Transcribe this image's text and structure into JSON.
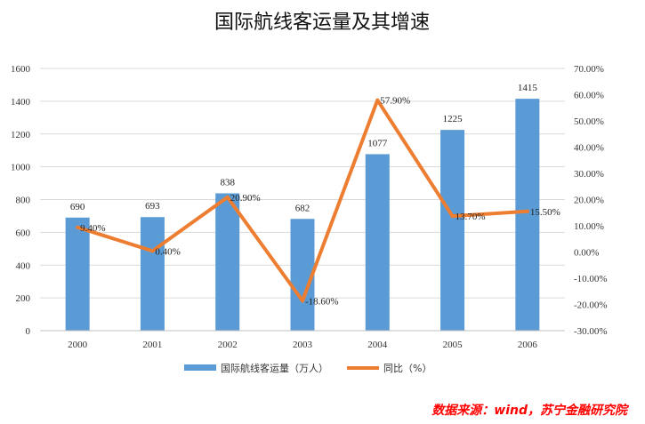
{
  "colors": {
    "bar": "#5b9bd5",
    "line": "#ed7d31",
    "grid": "#d9d9d9",
    "source": "#ff0000"
  },
  "source_text": "数据来源：wind，苏宁金融研究院",
  "chart_data": {
    "type": "bar",
    "title": "国际航线客运量及其增速",
    "categories": [
      "2000",
      "2001",
      "2002",
      "2003",
      "2004",
      "2005",
      "2006"
    ],
    "series": [
      {
        "name": "国际航线客运量（万人）",
        "type": "bar",
        "axis": "left",
        "values": [
          690,
          693,
          838,
          682,
          1077,
          1225,
          1415
        ],
        "labels": [
          "690",
          "693",
          "838",
          "682",
          "1077",
          "1225",
          "1415"
        ]
      },
      {
        "name": "同比（%）",
        "type": "line",
        "axis": "right",
        "values": [
          9.4,
          0.4,
          20.9,
          -18.6,
          57.9,
          13.7,
          15.5
        ],
        "labels": [
          "9.40%",
          "0.40%",
          "20.90%",
          "-18.60%",
          "57.90%",
          "13.70%",
          "15.50%"
        ]
      }
    ],
    "y_left": {
      "min": 0,
      "max": 1600,
      "ticks": [
        "0",
        "200",
        "400",
        "600",
        "800",
        "1000",
        "1200",
        "1400",
        "1600"
      ]
    },
    "y_right": {
      "min": -30,
      "max": 70,
      "ticks": [
        "-30.00%",
        "-20.00%",
        "-10.00%",
        "0.00%",
        "10.00%",
        "20.00%",
        "30.00%",
        "40.00%",
        "50.00%",
        "60.00%",
        "70.00%"
      ]
    },
    "grid": true,
    "legend_position": "bottom"
  }
}
